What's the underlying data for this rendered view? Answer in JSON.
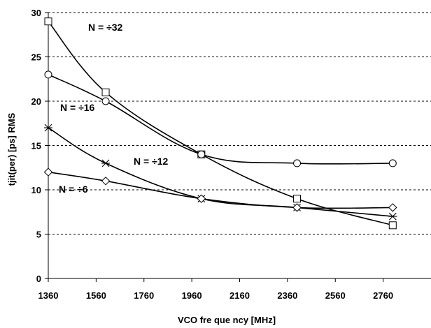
{
  "chart_data": {
    "type": "line",
    "xlabel": "VCO fre que ncy [MHz]",
    "ylabel": "tjit(per) [ps] RMS",
    "xlim": [
      1360,
      2960
    ],
    "ylim": [
      0,
      30
    ],
    "x_ticks": [
      1360,
      1560,
      1760,
      1960,
      2160,
      2360,
      2560,
      2760
    ],
    "y_ticks": [
      0,
      5,
      10,
      15,
      20,
      25,
      30
    ],
    "grid": "horizontal-dashed",
    "legend": "none",
    "series": [
      {
        "name": "N = ÷32",
        "marker": "square",
        "x": [
          1360,
          1600,
          2000,
          2400,
          2800
        ],
        "y": [
          29,
          21,
          14,
          9,
          6
        ]
      },
      {
        "name": "N = ÷16",
        "marker": "circle",
        "x": [
          1360,
          1600,
          2000,
          2400,
          2800
        ],
        "y": [
          23,
          20,
          14,
          13,
          13
        ]
      },
      {
        "name": "N = ÷12",
        "marker": "star",
        "x": [
          1360,
          1600,
          2000,
          2400,
          2800
        ],
        "y": [
          17,
          13,
          9,
          8,
          7
        ]
      },
      {
        "name": "N = ÷6",
        "marker": "diamond",
        "x": [
          1360,
          1600,
          2000,
          2400,
          2800
        ],
        "y": [
          12,
          11,
          9,
          8,
          8
        ]
      }
    ]
  }
}
